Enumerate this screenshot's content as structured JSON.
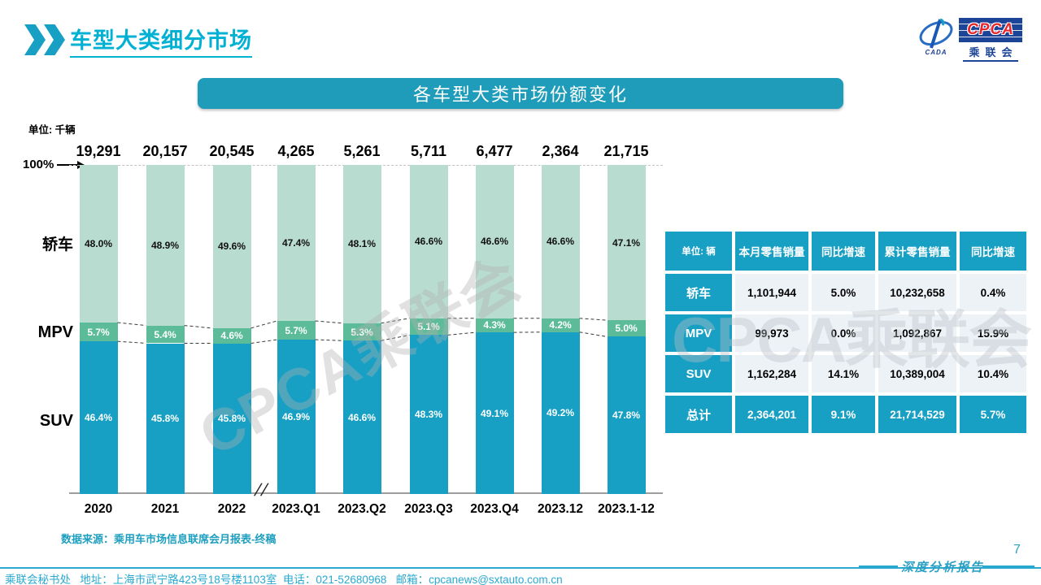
{
  "colors": {
    "teal": "#18a0c4",
    "banner": "#1e9cba",
    "title": "#00b1d4",
    "footer": "#29a9d0",
    "cell_bg": "#edf2f7",
    "pale_green": "#b9dcd1",
    "mid_green": "#5cbc9a"
  },
  "header": {
    "title": "车型大类细分市场",
    "banner_title": "各车型大类市场份额变化",
    "logo": {
      "cpca": "CPCA",
      "sub": "乘联会",
      "cada": "CADA"
    }
  },
  "chart": {
    "unit_label": "单位: 千辆",
    "axis_100_label": "100%",
    "axis_break": "//",
    "row_labels": {
      "sedan": "轿车",
      "mpv": "MPV",
      "suv": "SUV"
    }
  },
  "chart_data": {
    "type": "bar",
    "subtype": "100pct-stacked",
    "title": "各车型大类市场份额变化",
    "unit": "千辆",
    "categories": [
      "2020",
      "2021",
      "2022",
      "2023.Q1",
      "2023.Q2",
      "2023.Q3",
      "2023.Q4",
      "2023.12",
      "2023.1-12"
    ],
    "totals": [
      "19,291",
      "20,157",
      "20,545",
      "4,265",
      "5,261",
      "5,711",
      "6,477",
      "2,364",
      "21,715"
    ],
    "series": [
      {
        "name": "轿车",
        "color": "#b9dcd1",
        "label_color": "#111111",
        "values": [
          48.0,
          48.9,
          49.6,
          47.4,
          48.1,
          46.6,
          46.6,
          46.6,
          47.1
        ]
      },
      {
        "name": "MPV",
        "color": "#5cbc9a",
        "label_color": "#ffffff",
        "values": [
          5.7,
          5.4,
          4.6,
          5.7,
          5.3,
          5.1,
          4.3,
          4.2,
          5.0
        ]
      },
      {
        "name": "SUV",
        "color": "#17a0c4",
        "label_color": "#ffffff",
        "values": [
          46.4,
          45.8,
          45.8,
          46.9,
          46.6,
          48.3,
          49.1,
          49.2,
          47.8
        ]
      }
    ],
    "ylim": [
      0,
      100
    ],
    "axis_break_after": "2022",
    "legend_position": "left-row-labels",
    "grid": false
  },
  "table": {
    "unit_header": "单位: 辆",
    "columns": [
      "本月零售销量",
      "同比增速",
      "累计零售销量",
      "同比增速"
    ],
    "rows": [
      {
        "label": "轿车",
        "values": [
          "1,101,944",
          "5.0%",
          "10,232,658",
          "0.4%"
        ],
        "total": false
      },
      {
        "label": "MPV",
        "values": [
          "99,973",
          "0.0%",
          "1,092,867",
          "15.9%"
        ],
        "total": false
      },
      {
        "label": "SUV",
        "values": [
          "1,162,284",
          "14.1%",
          "10,389,004",
          "10.4%"
        ],
        "total": false
      },
      {
        "label": "总计",
        "values": [
          "2,364,201",
          "9.1%",
          "21,714,529",
          "5.7%"
        ],
        "total": true
      }
    ]
  },
  "watermark": "CPCA乘联会",
  "footer": {
    "source": "数据来源：乘用车市场信息联席会月报表-终稿",
    "info": "乘联会秘书处   地址：上海市武宁路423号18号楼1103室  电话：021-52680968   邮箱：cpcanews@sxtauto.com.cn",
    "report_label": "深度分析报告",
    "page_number": "7"
  }
}
